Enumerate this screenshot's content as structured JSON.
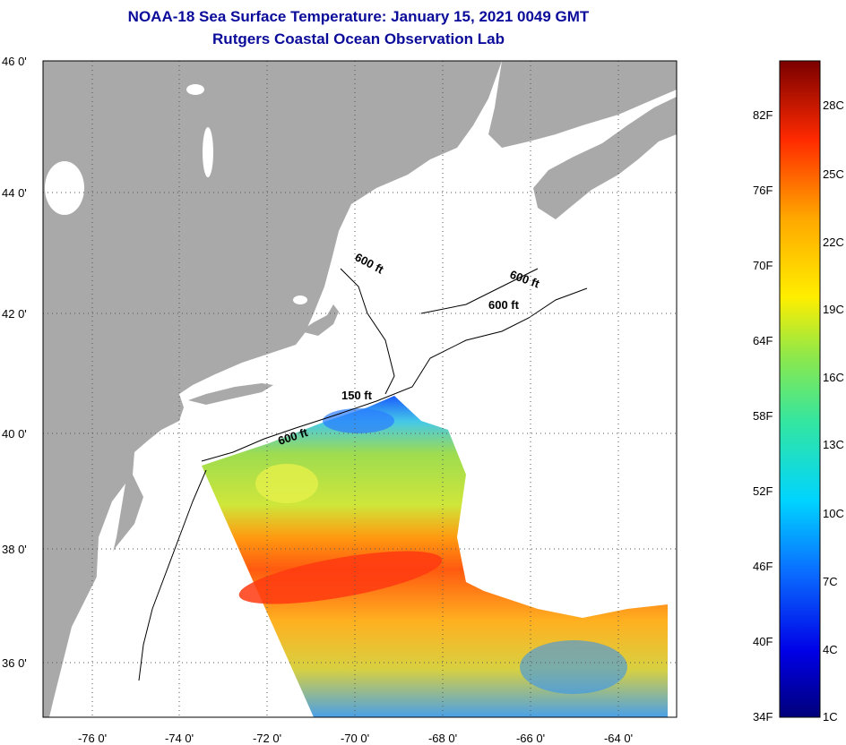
{
  "title": {
    "line1": "NOAA-18 Sea Surface Temperature:  January 15, 2021 0049 GMT",
    "line2": "Rutgers Coastal Ocean Observation Lab"
  },
  "map": {
    "lon_ticks": [
      "-76 0'",
      "-74 0'",
      "-72 0'",
      "-70 0'",
      "-68 0'",
      "-66 0'",
      "-64 0'"
    ],
    "lat_ticks": [
      "46 0'",
      "44 0'",
      "42 0'",
      "40 0'",
      "38 0'",
      "36 0'"
    ],
    "contour_labels": [
      "600 ft",
      "600 ft",
      "600 ft",
      "150 ft",
      "600 ft"
    ],
    "colors": {
      "land": "#a9a9a9",
      "water": "#ffffff",
      "title": "#0b0b9a"
    }
  },
  "colorbar": {
    "fahrenheit": [
      "82F",
      "76F",
      "70F",
      "64F",
      "58F",
      "52F",
      "46F",
      "40F",
      "34F"
    ],
    "celsius": [
      "28C",
      "25C",
      "22C",
      "19C",
      "16C",
      "13C",
      "10C",
      "7C",
      "4C",
      "1C"
    ]
  }
}
